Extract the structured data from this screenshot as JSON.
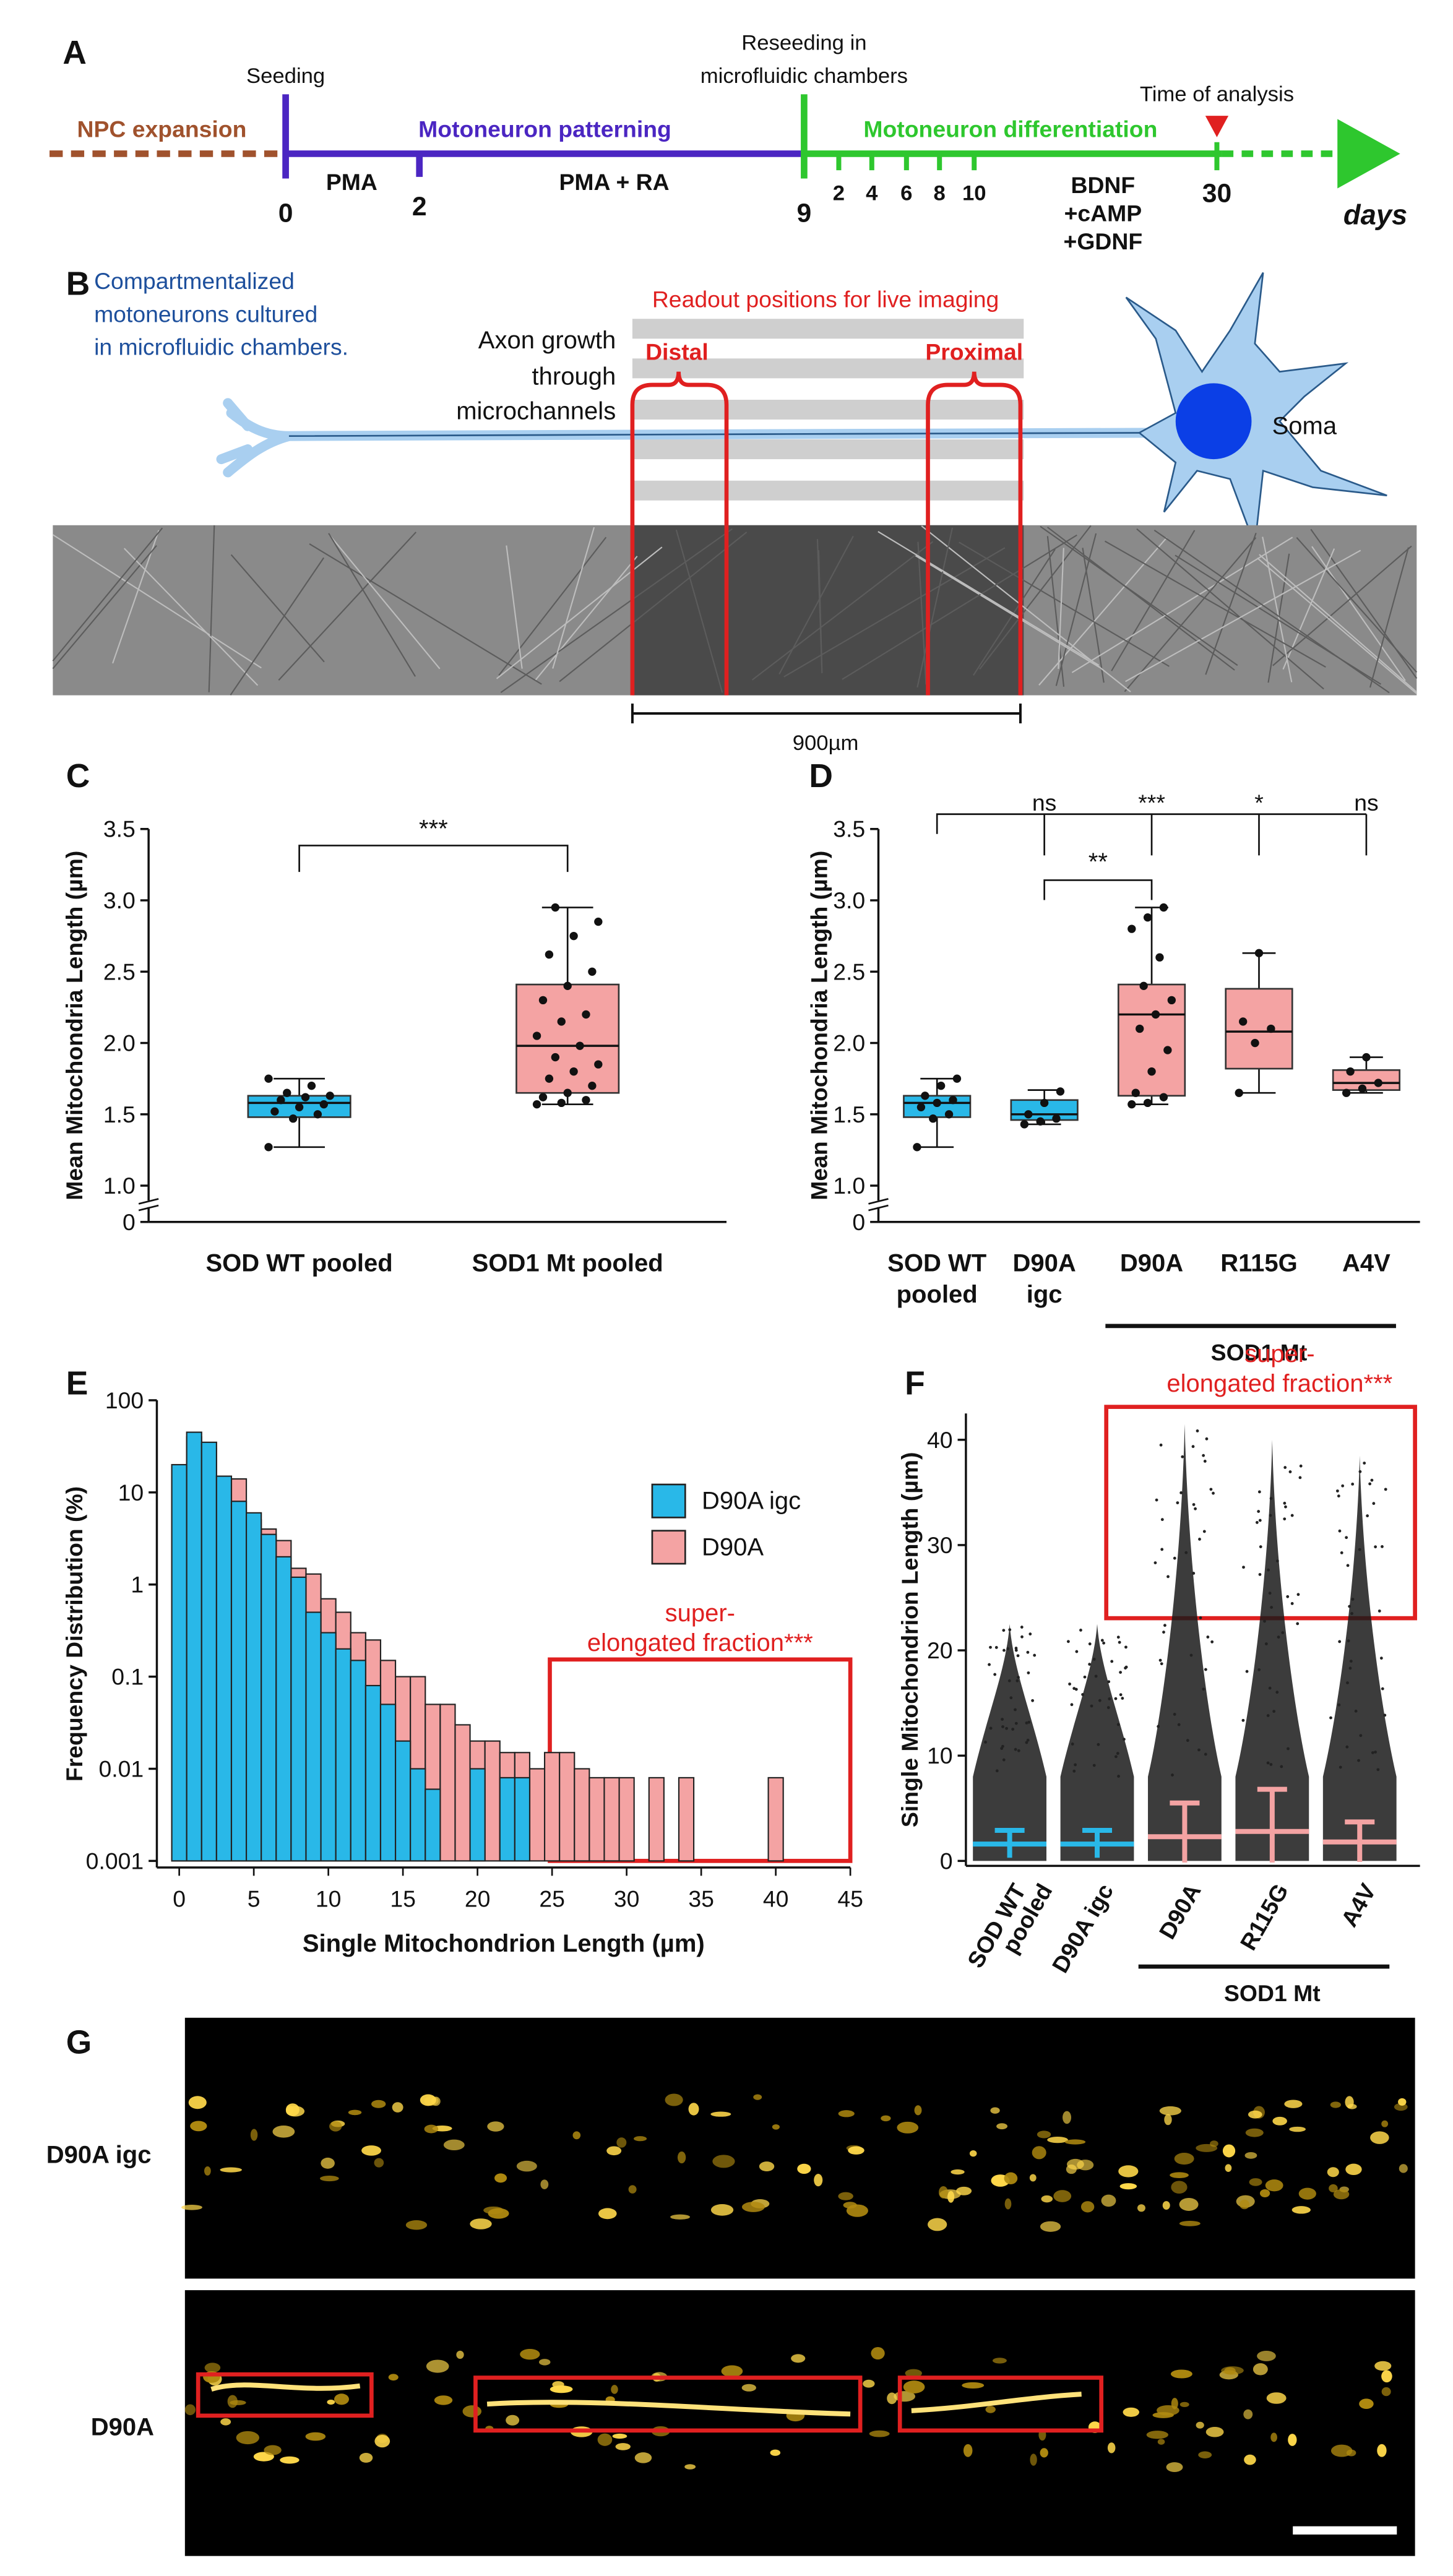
{
  "timeline": {
    "label": "A",
    "seeding": "Seeding",
    "reseeding": [
      "Reseeding in",
      "microfluidic chambers"
    ],
    "analysis": "Time of analysis",
    "phases": [
      "NPC expansion",
      "Motoneuron patterning",
      "Motoneuron differentiation"
    ],
    "treatments": [
      "PMA",
      "PMA + RA"
    ],
    "factors": [
      "BDNF",
      "+cAMP",
      "+GDNF"
    ],
    "days": [
      0,
      2,
      9,
      30
    ],
    "days_after_reseeding": [
      2,
      4,
      6,
      8,
      10
    ],
    "unit": "days"
  },
  "setup": {
    "label": "B",
    "caption": [
      "Compartmentalized",
      "motoneurons cultured",
      "in microfluidic chambers."
    ],
    "readout": "Readout positions for live imaging",
    "axon": [
      "Axon growth",
      "through",
      "microchannels"
    ],
    "positions": [
      "Distal",
      "Proximal"
    ],
    "soma": "Soma",
    "scale": "900µm"
  },
  "imaging": {
    "label": "G",
    "rows": [
      "D90A igc",
      "D90A"
    ]
  },
  "chart_data": [
    {
      "panel": "C",
      "type": "box",
      "ylabel": "Mean Mitochondria Length (µm)",
      "categories": [
        [
          "SOD WT pooled"
        ],
        [
          "SOD1 Mt pooled"
        ]
      ],
      "colors": [
        "#29b8e8",
        "#f4a3a3"
      ],
      "ylim": [
        1.0,
        3.5
      ],
      "axis_break": true,
      "yticks": [
        0,
        {
          "value": 1,
          "label": "1.0"
        },
        1.5,
        {
          "value": 2,
          "label": "2.0"
        },
        2.5,
        {
          "value": 3,
          "label": "3.0"
        },
        3.5
      ],
      "boxes": [
        {
          "min": 1.27,
          "q1": 1.48,
          "median": 1.58,
          "q3": 1.63,
          "max": 1.75,
          "points": [
            1.27,
            1.47,
            1.5,
            1.52,
            1.55,
            1.57,
            1.6,
            1.62,
            1.63,
            1.65,
            1.7,
            1.75
          ]
        },
        {
          "min": 1.57,
          "q1": 1.65,
          "median": 1.98,
          "q3": 2.41,
          "max": 2.95,
          "points": [
            1.57,
            1.58,
            1.6,
            1.62,
            1.65,
            1.7,
            1.75,
            1.8,
            1.85,
            1.9,
            1.98,
            2.05,
            2.15,
            2.2,
            2.3,
            2.4,
            2.5,
            2.62,
            2.75,
            2.85,
            2.95
          ]
        }
      ],
      "annotations": [
        "***"
      ]
    },
    {
      "panel": "D",
      "type": "box",
      "ylabel": "Mean Mitochondria Length (µm)",
      "categories": [
        [
          "SOD WT",
          "pooled"
        ],
        [
          "D90A",
          "igc"
        ],
        [
          "D90A"
        ],
        [
          "R115G"
        ],
        [
          "A4V"
        ]
      ],
      "group": "SOD1 Mt",
      "colors": [
        "#29b8e8",
        "#29b8e8",
        "#f4a3a3",
        "#f4a3a3",
        "#f4a3a3"
      ],
      "ylim": [
        1.0,
        3.5
      ],
      "axis_break": true,
      "yticks": [
        0,
        {
          "value": 1,
          "label": "1.0"
        },
        1.5,
        {
          "value": 2,
          "label": "2.0"
        },
        2.5,
        {
          "value": 3,
          "label": "3.0"
        },
        3.5
      ],
      "boxes": [
        {
          "min": 1.27,
          "q1": 1.48,
          "median": 1.58,
          "q3": 1.63,
          "max": 1.75,
          "points": [
            1.27,
            1.47,
            1.5,
            1.55,
            1.58,
            1.6,
            1.63,
            1.7,
            1.75
          ]
        },
        {
          "min": 1.43,
          "q1": 1.46,
          "median": 1.5,
          "q3": 1.6,
          "max": 1.67,
          "points": [
            1.43,
            1.45,
            1.47,
            1.5,
            1.58,
            1.66
          ]
        },
        {
          "min": 1.57,
          "q1": 1.63,
          "median": 2.2,
          "q3": 2.41,
          "max": 2.95,
          "points": [
            1.57,
            1.58,
            1.62,
            1.65,
            1.8,
            1.95,
            2.1,
            2.2,
            2.3,
            2.4,
            2.6,
            2.8,
            2.88,
            2.95
          ]
        },
        {
          "min": 1.65,
          "q1": 1.82,
          "median": 2.08,
          "q3": 2.38,
          "max": 2.63,
          "points": [
            1.65,
            2.0,
            2.1,
            2.15,
            2.63
          ]
        },
        {
          "min": 1.65,
          "q1": 1.67,
          "median": 1.72,
          "q3": 1.81,
          "max": 1.9,
          "points": [
            1.65,
            1.68,
            1.72,
            1.8,
            1.9
          ]
        }
      ],
      "annotations": [
        "ns",
        "***",
        "*",
        "ns",
        "**"
      ]
    },
    {
      "panel": "E",
      "type": "histogram",
      "xlabel": "Single Mitochondrion Length (µm)",
      "ylabel": "Frequency Distribution (%)",
      "log_y": true,
      "xlim": [
        -1.5,
        45
      ],
      "ylim": [
        0.001,
        100
      ],
      "xticks": [
        0,
        5,
        10,
        15,
        20,
        25,
        30,
        35,
        40,
        45
      ],
      "yticks": [
        0.001,
        0.01,
        0.1,
        1,
        10,
        100
      ],
      "bins": [
        -0.5,
        0.5,
        1.5,
        2.5,
        3.5,
        4.5,
        5.5,
        6.5,
        7.5,
        8.5,
        9.5,
        10.5,
        11.5,
        12.5,
        13.5,
        14.5,
        15.5,
        16.5,
        17.5,
        18.5,
        19.5,
        20.5,
        21.5,
        22.5,
        23.5,
        24.5,
        25.5,
        26.5,
        27.5,
        28.5,
        29.5,
        30.5,
        31.5,
        32.5,
        33.5,
        34.5,
        35.5,
        36.5,
        37.5,
        38.5,
        39.5,
        40.5,
        41.5
      ],
      "series": [
        {
          "name": "D90A igc",
          "color": "#29b8e8",
          "values": [
            20,
            45,
            35,
            15,
            8,
            6,
            3.5,
            2,
            1.2,
            0.5,
            0.3,
            0.2,
            0.15,
            0.08,
            0.05,
            0.02,
            0.01,
            0.006,
            0,
            0,
            0.01,
            0,
            0.008,
            0.008,
            0,
            0,
            0,
            0,
            0,
            0,
            0,
            0,
            0,
            0,
            0,
            0,
            0,
            0,
            0,
            0,
            0,
            0
          ]
        },
        {
          "name": "D90A",
          "color": "#f4a3a3",
          "values": [
            15,
            40,
            30,
            14,
            14,
            5,
            4,
            3,
            1.5,
            1.3,
            0.7,
            0.5,
            0.3,
            0.25,
            0.15,
            0.1,
            0.1,
            0.05,
            0.05,
            0.03,
            0.02,
            0.02,
            0.015,
            0.015,
            0.01,
            0.015,
            0.015,
            0.01,
            0.008,
            0.008,
            0.008,
            0,
            0.008,
            0,
            0.008,
            0,
            0,
            0,
            0,
            0,
            0.008,
            0
          ]
        }
      ],
      "annotation": [
        "super-",
        "elongated fraction***"
      ]
    },
    {
      "panel": "F",
      "type": "strip",
      "ylabel": "Single Mitochondrion Length (µm)",
      "categories": [
        [
          "SOD WT",
          "pooled"
        ],
        [
          "D90A igc"
        ],
        [
          "D90A"
        ],
        [
          "R115G"
        ],
        [
          "A4V"
        ]
      ],
      "group": "SOD1 Mt",
      "colors": [
        "#29b8e8",
        "#29b8e8",
        "#f4a3a3",
        "#f4a3a3",
        "#f4a3a3"
      ],
      "ylim": [
        0,
        42.5
      ],
      "yticks": [
        0,
        10,
        20,
        30,
        40
      ],
      "means": [
        1.6,
        1.6,
        2.3,
        2.8,
        1.8
      ],
      "sds": [
        1.3,
        1.3,
        3.2,
        4,
        1.9
      ],
      "max": [
        22.5,
        22.5,
        41.5,
        40,
        38.5
      ],
      "annotation": [
        "super-",
        "elongated fraction***"
      ]
    }
  ]
}
